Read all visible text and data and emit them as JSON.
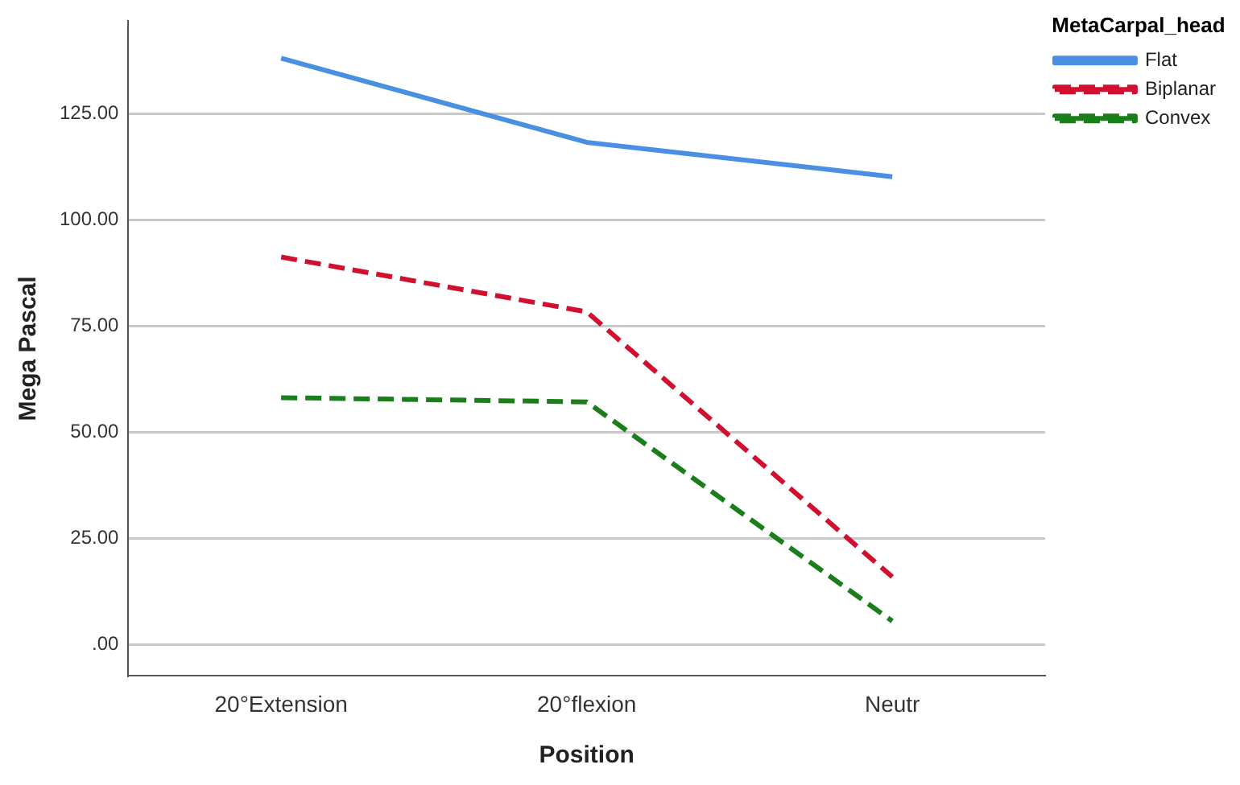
{
  "chart_data": {
    "type": "line",
    "xlabel": "Position",
    "ylabel": "Mega Pascal",
    "legend_title": "MetaCarpal_head",
    "categories": [
      "20°Extension",
      "20°flexion",
      "Neutr"
    ],
    "series": [
      {
        "name": "Flat",
        "color": "#4a90e2",
        "values": [
          138,
          118.2,
          110.1
        ],
        "line_style": "solid"
      },
      {
        "name": "Biplanar",
        "color": "#d0102e",
        "values": [
          91.2,
          78.3,
          15.9
        ],
        "line_style": "dashed"
      },
      {
        "name": "Convex",
        "color": "#1a7f1a",
        "values": [
          58.1,
          57.1,
          5.5
        ],
        "line_style": "dashed"
      }
    ],
    "ylim": [
      -7.4,
      146.7
    ],
    "yticks": [
      {
        "value": 0,
        "label": ".00"
      },
      {
        "value": 25,
        "label": "25.00"
      },
      {
        "value": 50,
        "label": "50.00"
      },
      {
        "value": 75,
        "label": "75.00"
      },
      {
        "value": 100,
        "label": "100.00"
      },
      {
        "value": 125,
        "label": "125.00"
      }
    ],
    "grid": "y",
    "legend": "top right",
    "marker": "none"
  }
}
